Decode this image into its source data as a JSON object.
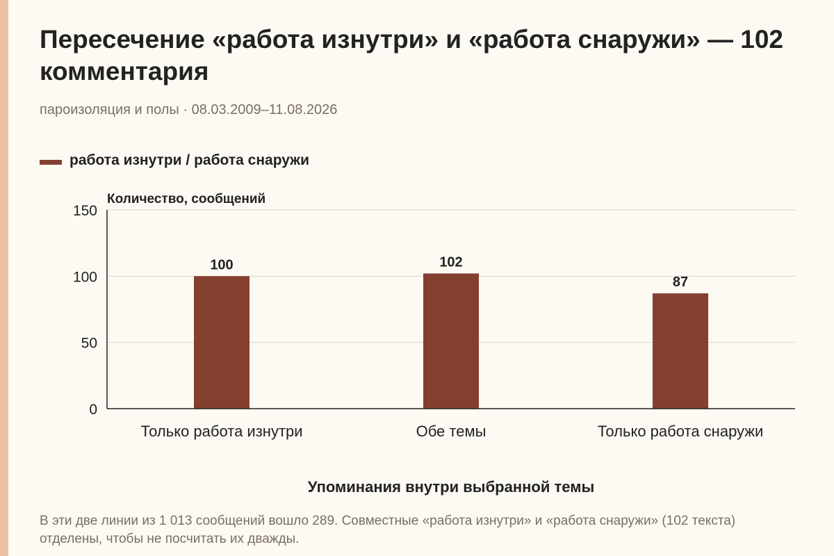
{
  "title": "Пересечение «работа изнутри» и «работа снаружи» — 102 комментария",
  "subtitle": "пароизоляция и полы · 08.03.2009–11.08.2026",
  "footnote": "В эти две линии из 1 013 сообщений вошло 289. Совместные «работа изнутри» и «работа снаружи» (102 текста) отделены, чтобы не посчитать их дважды.",
  "colors": {
    "bar": "#843f2f",
    "accent_strip": "#efbfa5",
    "grid": "#d9d4cc",
    "axis": "#222222"
  },
  "chart_data": {
    "type": "bar",
    "categories": [
      "Только работа изнутри",
      "Обе темы",
      "Только работа снаружи"
    ],
    "series": [
      {
        "name": "работа изнутри / работа снаружи",
        "values": [
          100,
          102,
          87
        ]
      }
    ],
    "data_labels": [
      "100",
      "102",
      "87"
    ],
    "ylabel": "Количество, сообщений",
    "xlabel": "Упоминания внутри выбранной темы",
    "ylim": [
      0,
      150
    ],
    "yticks": [
      0,
      50,
      100,
      150
    ],
    "grid": true,
    "legend_position": "top-left"
  }
}
